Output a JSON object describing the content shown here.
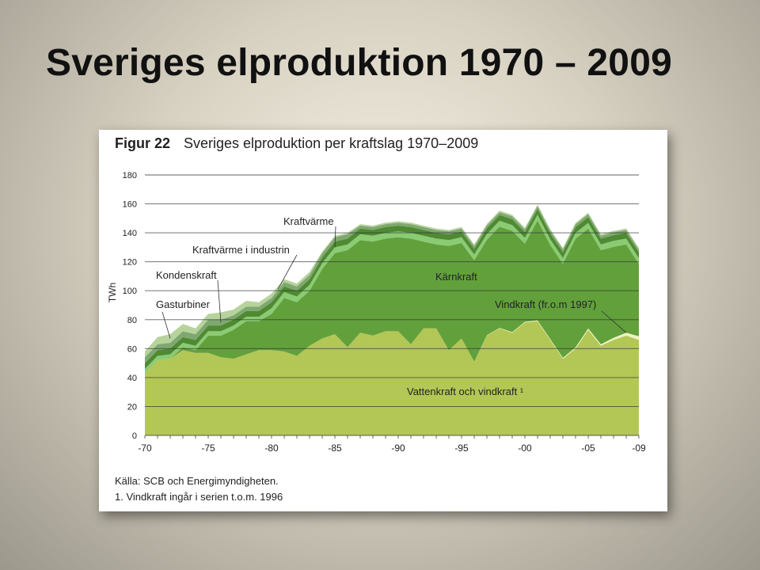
{
  "slide": {
    "title": "Sveriges elproduktion 1970 – 2009"
  },
  "figure": {
    "figure_label": "Figur 22",
    "figure_title": "Sveriges elproduktion per kraftslag 1970–2009",
    "source": "Källa: SCB och Energimyndigheten.",
    "footnote": "1. Vindkraft ingår i serien t.o.m. 1996"
  },
  "chart_data": {
    "type": "area",
    "stacked": true,
    "ylabel": "TWh",
    "xlabel": "",
    "ylim": [
      0,
      180
    ],
    "yticks": [
      0,
      20,
      40,
      60,
      80,
      100,
      120,
      140,
      160,
      180
    ],
    "xticks": [
      {
        "year": 1970,
        "label": "-70"
      },
      {
        "year": 1975,
        "label": "-75"
      },
      {
        "year": 1980,
        "label": "-80"
      },
      {
        "year": 1985,
        "label": "-85"
      },
      {
        "year": 1990,
        "label": "-90"
      },
      {
        "year": 1995,
        "label": "-95"
      },
      {
        "year": 2000,
        "label": "-00"
      },
      {
        "year": 2005,
        "label": "-05"
      },
      {
        "year": 2009,
        "label": "-09"
      }
    ],
    "grid": true,
    "years": [
      1970,
      1971,
      1972,
      1973,
      1974,
      1975,
      1976,
      1977,
      1978,
      1979,
      1980,
      1981,
      1982,
      1983,
      1984,
      1985,
      1986,
      1987,
      1988,
      1989,
      1990,
      1991,
      1992,
      1993,
      1994,
      1995,
      1996,
      1997,
      1998,
      1999,
      2000,
      2001,
      2002,
      2003,
      2004,
      2005,
      2006,
      2007,
      2008,
      2009
    ],
    "series": [
      {
        "name": "Vattenkraft och vindkraft ¹",
        "color": "#b3c756",
        "values": [
          43,
          52,
          53,
          59,
          57,
          57,
          54,
          53,
          56,
          59,
          59,
          58,
          55,
          62,
          67,
          70,
          61,
          71,
          69,
          72,
          72,
          63,
          74,
          74,
          59,
          67,
          51,
          69,
          74,
          71,
          78,
          79,
          66,
          53,
          60,
          73,
          62,
          66,
          69,
          66
        ]
      },
      {
        "name": "Vindkraft (fr.o.m 1997)",
        "color": "#eef2c0",
        "values": [
          0,
          0,
          0,
          0,
          0,
          0,
          0,
          0,
          0,
          0,
          0,
          0,
          0,
          0,
          0,
          0,
          0,
          0,
          0,
          0,
          0,
          0,
          0,
          0,
          0,
          0,
          0,
          0.2,
          0.3,
          0.4,
          0.5,
          0.5,
          0.6,
          0.6,
          0.9,
          0.9,
          1.0,
          1.4,
          2.0,
          2.5
        ]
      },
      {
        "name": "Kärnkraft",
        "color": "#62a03c",
        "values": [
          0,
          0,
          0,
          2,
          2,
          12,
          15,
          20,
          23,
          20,
          25,
          37,
          37,
          38,
          48,
          56,
          67,
          64,
          65,
          64,
          65,
          73,
          60,
          58,
          72,
          66,
          70,
          66,
          70,
          70,
          54,
          69,
          65,
          65,
          75,
          69,
          65,
          63,
          61,
          50
        ]
      },
      {
        "name": "Kraftvärme",
        "color": "#8acb73",
        "values": [
          3,
          3,
          3,
          3,
          3,
          3,
          3,
          3,
          3,
          3,
          4,
          4,
          4,
          4,
          4,
          4,
          4,
          4,
          4,
          4,
          4,
          4,
          4,
          4,
          4,
          4,
          4,
          4,
          4,
          4,
          4,
          4,
          4,
          4,
          4,
          4,
          4,
          4,
          4,
          4
        ]
      },
      {
        "name": "Kraftvärme i industrin",
        "color": "#4f8a33",
        "values": [
          4,
          4,
          4,
          4,
          4,
          4,
          4,
          4,
          4,
          4,
          4,
          4,
          4,
          4,
          4,
          4,
          4,
          4,
          4,
          4,
          4,
          4,
          4,
          4,
          4,
          4,
          4,
          4,
          4,
          4,
          4,
          4,
          4,
          4,
          4,
          4,
          4,
          4,
          4,
          4
        ]
      },
      {
        "name": "Kondenskraft",
        "color": "#7fa870",
        "values": [
          4,
          4,
          4,
          4,
          4,
          4,
          4,
          3,
          3,
          3,
          3,
          3,
          3,
          3,
          3,
          3,
          3,
          2,
          2,
          2,
          2,
          2,
          2,
          2,
          2,
          2,
          2,
          2,
          2,
          2,
          2,
          2,
          2,
          2,
          2,
          2,
          2,
          2,
          2,
          2
        ]
      },
      {
        "name": "Gasturbiner",
        "color": "#b7d39c",
        "values": [
          4,
          5,
          6,
          5,
          4,
          4,
          5,
          4,
          4,
          3,
          3,
          2,
          2,
          2,
          1,
          1,
          1,
          1,
          1,
          1,
          1,
          1,
          1,
          1,
          1,
          1,
          1,
          1,
          1,
          1,
          1,
          1,
          1,
          1,
          1,
          1,
          1,
          1,
          1,
          1
        ]
      }
    ],
    "annotations": [
      {
        "text": "Kraftvärme"
      },
      {
        "text": "Kraftvärme i industrin"
      },
      {
        "text": "Kondenskraft"
      },
      {
        "text": "Gasturbiner"
      },
      {
        "text": "Kärnkraft"
      },
      {
        "text": "Vindkraft (fr.o.m 1997)"
      },
      {
        "text": "Vattenkraft och vindkraft ¹"
      }
    ]
  }
}
